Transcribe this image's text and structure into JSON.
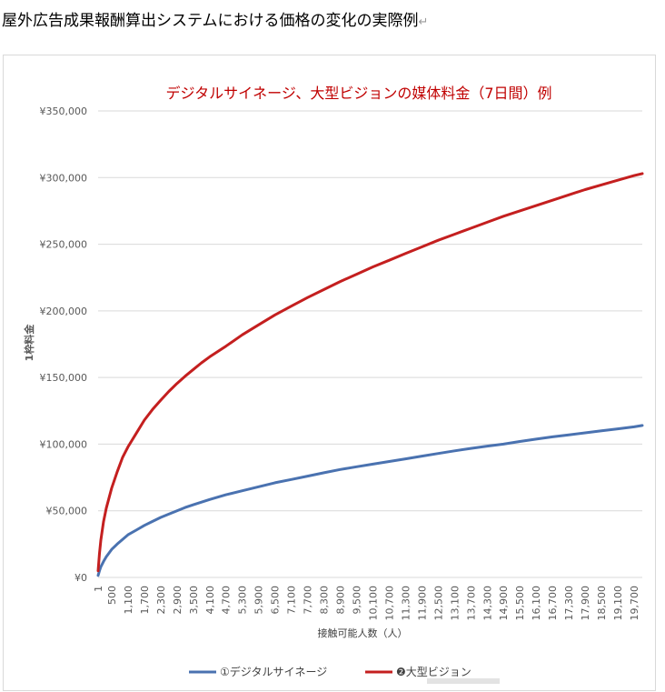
{
  "document": {
    "title": "屋外広告成果報酬算出システムにおける価格の変化の実際例",
    "paragraph_mark": "↵"
  },
  "colors": {
    "title": "#c00000",
    "series_1": "#4a72b0",
    "series_2": "#c41f1f",
    "grid": "#d9d9d9",
    "axis_text": "#595959"
  },
  "chart_data": {
    "type": "line",
    "title": "デジタルサイネージ、大型ビジョンの媒体料金（7日間）例",
    "xlabel": "接触可能人数（人）",
    "ylabel": "1枠料金",
    "x_tick_labels": [
      "1",
      "500",
      "1,100",
      "1,700",
      "2,300",
      "2,900",
      "3,500",
      "4,100",
      "4,700",
      "5,300",
      "5,900",
      "6,500",
      "7,100",
      "7,700",
      "8,300",
      "8,900",
      "9,500",
      "10,100",
      "10,700",
      "11,300",
      "11,900",
      "12,500",
      "13,100",
      "13,700",
      "14,300",
      "14,900",
      "15,500",
      "16,100",
      "16,700",
      "17,300",
      "17,900",
      "18,500",
      "19,100",
      "19,700"
    ],
    "y_tick_labels": [
      "¥0",
      "¥50,000",
      "¥100,000",
      "¥150,000",
      "¥200,000",
      "¥250,000",
      "¥300,000",
      "¥350,000"
    ],
    "xlim": [
      1,
      20000
    ],
    "ylim": [
      0,
      350000
    ],
    "grid": "horizontal",
    "legend_position": "bottom",
    "x": [
      1,
      50,
      100,
      200,
      300,
      500,
      700,
      900,
      1100,
      1400,
      1700,
      2000,
      2300,
      2600,
      2900,
      3200,
      3500,
      3800,
      4100,
      4700,
      5300,
      5900,
      6500,
      7100,
      7700,
      8300,
      8900,
      9500,
      10100,
      10700,
      11300,
      11900,
      12500,
      13100,
      13700,
      14300,
      14900,
      15500,
      16100,
      16700,
      17300,
      17900,
      18500,
      19100,
      19700,
      20000
    ],
    "series": [
      {
        "name": "①デジタルサイネージ",
        "values": [
          1500,
          5000,
          8000,
          12000,
          15500,
          21000,
          25000,
          28500,
          32000,
          35500,
          39000,
          42000,
          45000,
          47500,
          50000,
          52500,
          54500,
          56500,
          58500,
          62000,
          65000,
          68000,
          71000,
          73500,
          76000,
          78500,
          81000,
          83000,
          85000,
          87000,
          89000,
          91000,
          93000,
          95000,
          96800,
          98500,
          100000,
          102000,
          103800,
          105500,
          107000,
          108500,
          110000,
          111500,
          113000,
          114000
        ]
      },
      {
        "name": "❷大型ビジョン",
        "values": [
          5000,
          18000,
          28000,
          42000,
          52000,
          67000,
          79000,
          90000,
          98000,
          108000,
          118000,
          126000,
          133000,
          139500,
          145500,
          151000,
          156000,
          161000,
          165500,
          173500,
          182000,
          189500,
          197000,
          203500,
          210000,
          216000,
          222000,
          227500,
          233000,
          238000,
          243000,
          248000,
          253000,
          257500,
          262000,
          266500,
          271000,
          275000,
          279000,
          283000,
          287000,
          291000,
          294500,
          298000,
          301500,
          303000
        ]
      }
    ]
  }
}
